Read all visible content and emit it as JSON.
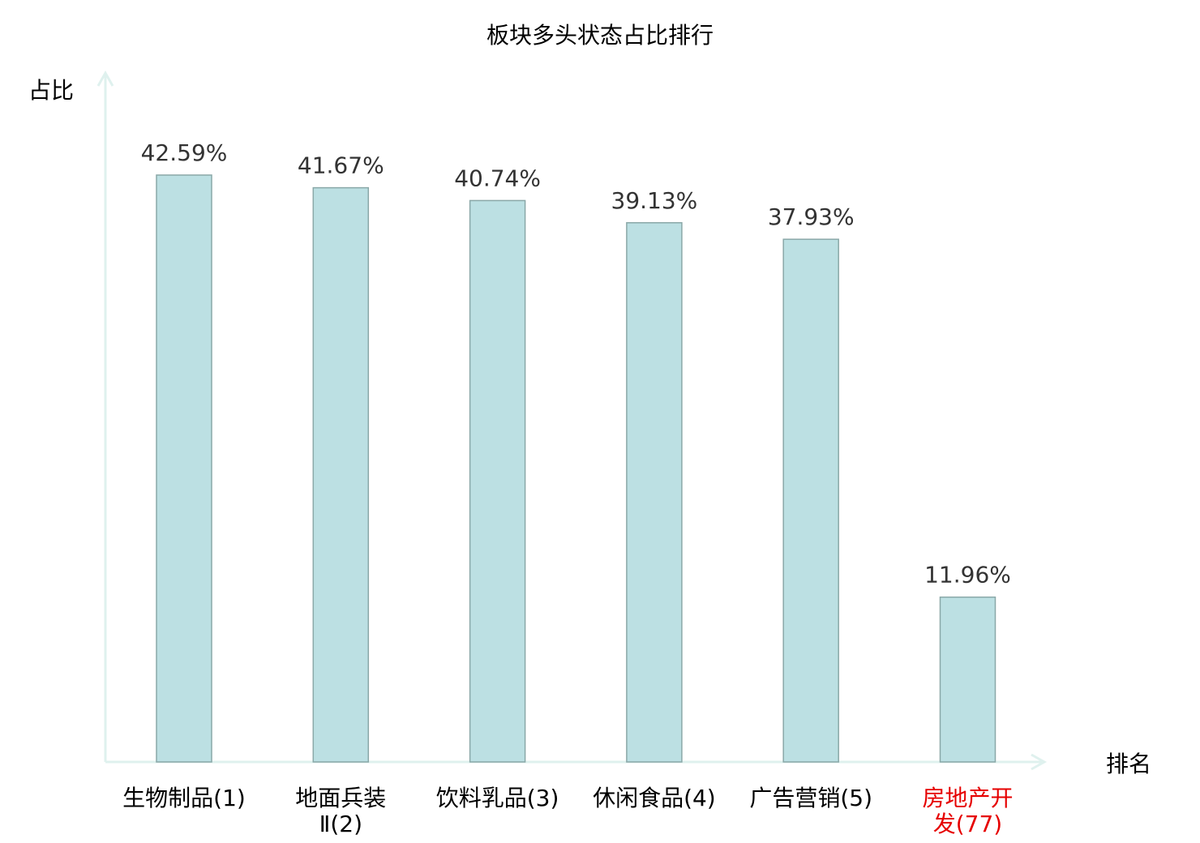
{
  "chart_data": {
    "type": "bar",
    "title": "板块多头状态占比排行",
    "xlabel": "排名",
    "ylabel": "占比",
    "categories": [
      "生物制品(1)",
      "地面兵装Ⅱ(2)",
      "饮料乳品(3)",
      "休闲食品(4)",
      "广告营销(5)",
      "房地产开发(77)"
    ],
    "values": [
      42.59,
      41.67,
      40.74,
      39.13,
      37.93,
      11.96
    ],
    "value_labels": [
      "42.59%",
      "41.67%",
      "40.74%",
      "39.13%",
      "37.93%",
      "11.96%"
    ],
    "highlight_category": "房地产开发(77)",
    "ylim": [
      0,
      50
    ],
    "grid": false,
    "legend": "none",
    "colors": {
      "bar_fill": "#bce0e3",
      "bar_stroke": "#8aa8a8",
      "axis": "#dff1ee",
      "highlight": "#e60000",
      "text": "#000000",
      "value_text": "#333333"
    }
  }
}
